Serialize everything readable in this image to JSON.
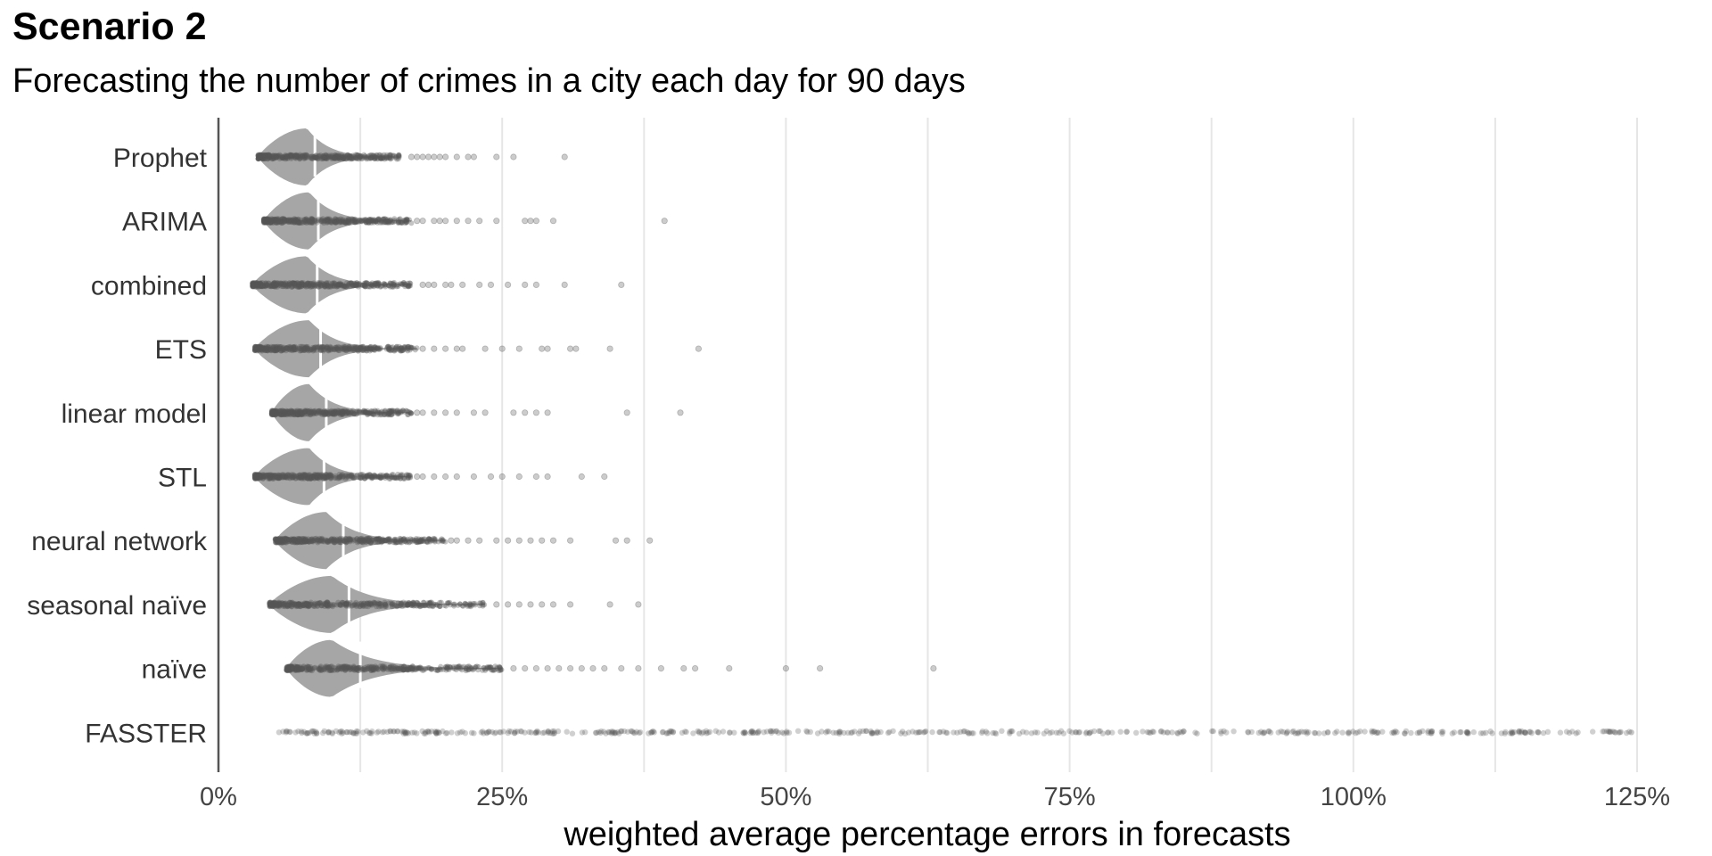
{
  "chart_data": {
    "type": "violin-with-points",
    "title": "Scenario 2",
    "subtitle": "Forecasting the number of crimes in a city each day for 90 days",
    "xlabel": "weighted average percentage errors in forecasts",
    "ylabel": "",
    "xlim": [
      0,
      1.27
    ],
    "x_ticks": [
      0,
      0.25,
      0.5,
      0.75,
      1.0,
      1.25
    ],
    "x_tick_labels": [
      "0%",
      "25%",
      "50%",
      "75%",
      "100%",
      "125%"
    ],
    "grid": "vertical major and minor, light grey",
    "legend": "none",
    "colors": {
      "violin": "#a6a6a6",
      "points": "#555555",
      "grid": "#e6e6e6",
      "axis": "#555555",
      "median": "#ffffff"
    },
    "categories": [
      "Prophet",
      "ARIMA",
      "combined",
      "ETS",
      "linear model",
      "STL",
      "neural network",
      "seasonal naïve",
      "naïve",
      "FASSTER"
    ],
    "series": [
      {
        "category": "Prophet",
        "min": 0.035,
        "mode": 0.078,
        "median": 0.085,
        "violin_max": 0.16,
        "max": 0.305,
        "outliers": [
          0.17,
          0.175,
          0.18,
          0.185,
          0.19,
          0.195,
          0.2,
          0.21,
          0.22,
          0.225,
          0.245,
          0.26,
          0.305
        ]
      },
      {
        "category": "ARIMA",
        "min": 0.04,
        "mode": 0.08,
        "median": 0.088,
        "violin_max": 0.17,
        "max": 0.393,
        "outliers": [
          0.175,
          0.18,
          0.19,
          0.195,
          0.2,
          0.21,
          0.22,
          0.23,
          0.245,
          0.27,
          0.275,
          0.28,
          0.295,
          0.393
        ]
      },
      {
        "category": "combined",
        "min": 0.03,
        "mode": 0.078,
        "median": 0.087,
        "violin_max": 0.17,
        "max": 0.355,
        "outliers": [
          0.18,
          0.185,
          0.19,
          0.2,
          0.205,
          0.215,
          0.23,
          0.24,
          0.255,
          0.27,
          0.28,
          0.305,
          0.355
        ]
      },
      {
        "category": "ETS",
        "min": 0.032,
        "mode": 0.08,
        "median": 0.09,
        "violin_max": 0.175,
        "max": 0.423,
        "outliers": [
          0.18,
          0.19,
          0.2,
          0.21,
          0.215,
          0.235,
          0.25,
          0.265,
          0.285,
          0.29,
          0.31,
          0.315,
          0.345,
          0.423
        ]
      },
      {
        "category": "linear model",
        "min": 0.047,
        "mode": 0.08,
        "median": 0.095,
        "violin_max": 0.17,
        "max": 0.407,
        "outliers": [
          0.175,
          0.18,
          0.19,
          0.2,
          0.21,
          0.225,
          0.235,
          0.26,
          0.27,
          0.28,
          0.29,
          0.36,
          0.407
        ]
      },
      {
        "category": "STL",
        "min": 0.032,
        "mode": 0.08,
        "median": 0.093,
        "violin_max": 0.17,
        "max": 0.34,
        "outliers": [
          0.175,
          0.18,
          0.19,
          0.2,
          0.21,
          0.225,
          0.24,
          0.25,
          0.265,
          0.28,
          0.29,
          0.32,
          0.34
        ]
      },
      {
        "category": "neural network",
        "min": 0.05,
        "mode": 0.095,
        "median": 0.11,
        "violin_max": 0.2,
        "max": 0.38,
        "outliers": [
          0.205,
          0.21,
          0.22,
          0.23,
          0.245,
          0.255,
          0.265,
          0.275,
          0.285,
          0.295,
          0.31,
          0.35,
          0.36,
          0.38
        ]
      },
      {
        "category": "seasonal naïve",
        "min": 0.045,
        "mode": 0.1,
        "median": 0.115,
        "violin_max": 0.235,
        "max": 0.37,
        "outliers": [
          0.245,
          0.255,
          0.265,
          0.275,
          0.285,
          0.295,
          0.31,
          0.345,
          0.37
        ]
      },
      {
        "category": "naïve",
        "min": 0.06,
        "mode": 0.1,
        "median": 0.125,
        "violin_max": 0.25,
        "max": 0.63,
        "outliers": [
          0.26,
          0.27,
          0.28,
          0.29,
          0.3,
          0.31,
          0.32,
          0.33,
          0.34,
          0.355,
          0.37,
          0.39,
          0.41,
          0.42,
          0.45,
          0.5,
          0.53,
          0.63
        ]
      },
      {
        "category": "FASSTER",
        "min": 0.05,
        "mode": null,
        "median": null,
        "violin_max": null,
        "max": 1.245,
        "outliers": []
      }
    ]
  }
}
